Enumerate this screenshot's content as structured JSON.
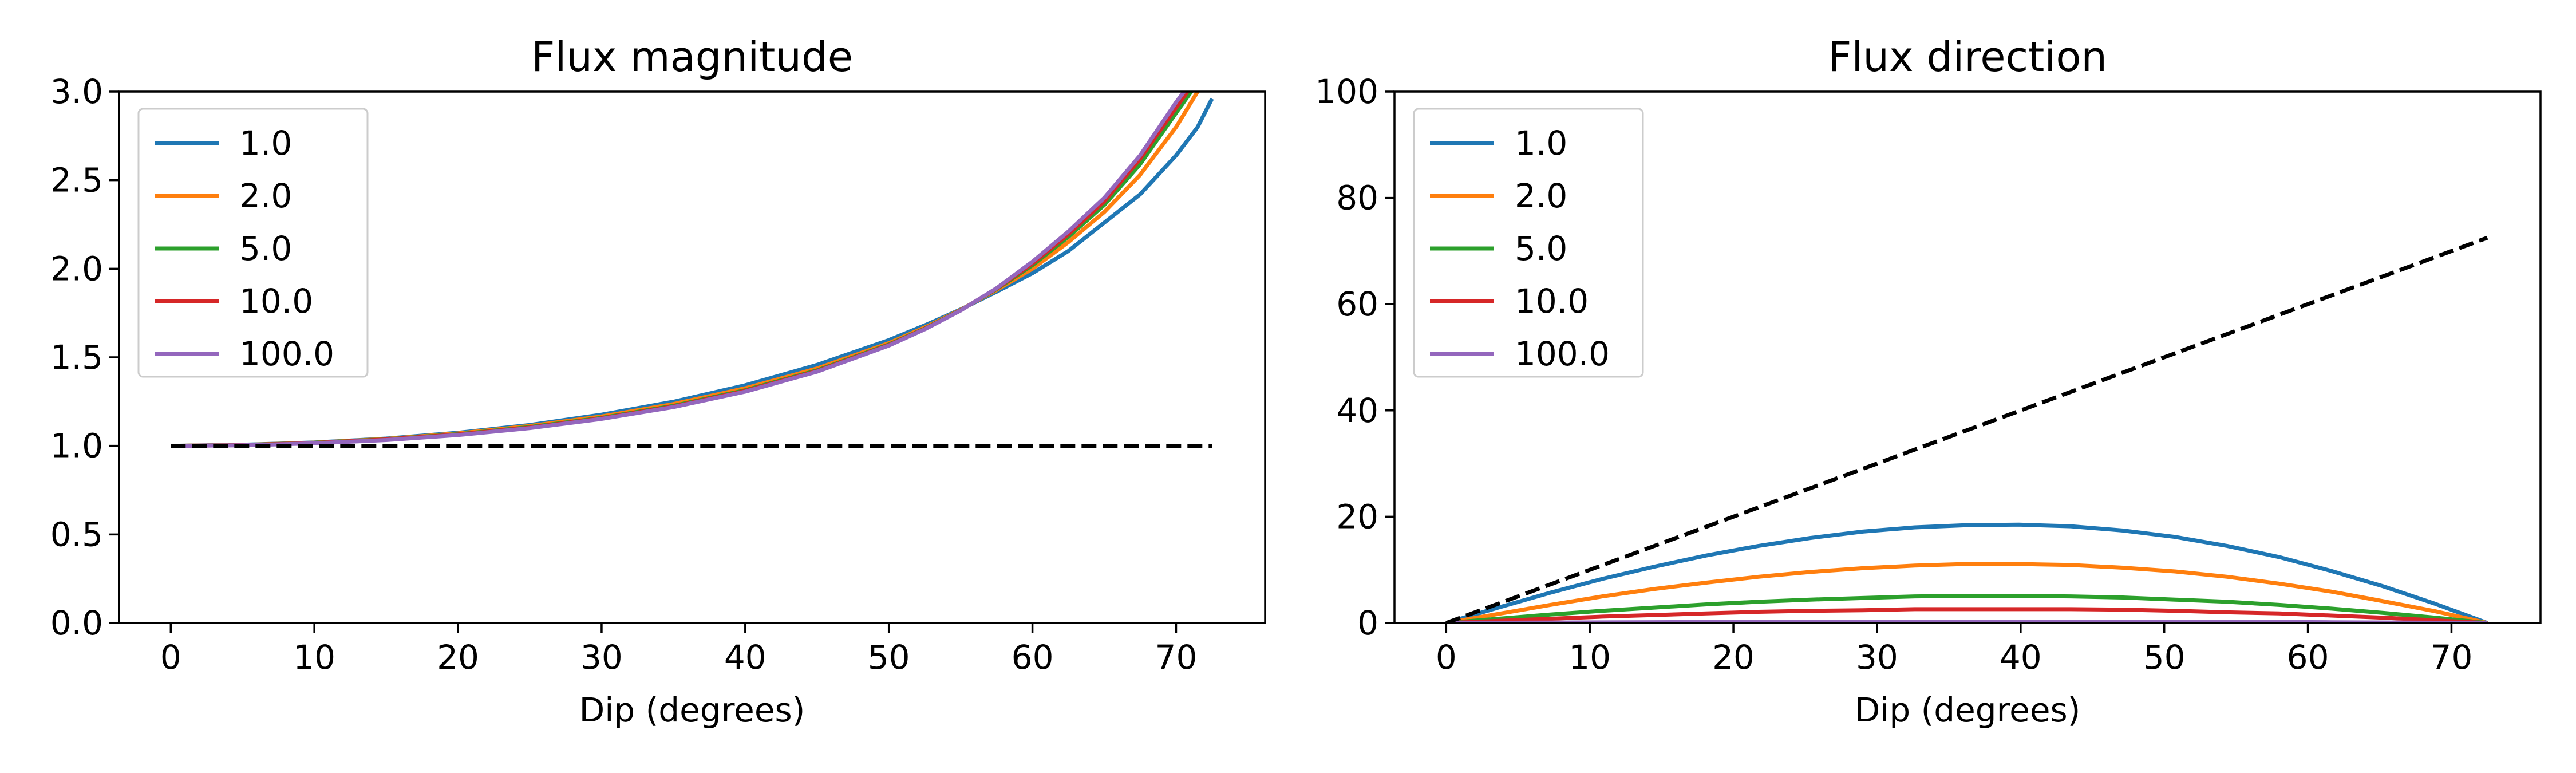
{
  "chart_data": [
    {
      "type": "line",
      "title": "Flux magnitude",
      "xlabel": "Dip (degrees)",
      "ylabel": "",
      "xlim": [
        -3.6,
        76.2
      ],
      "ylim": [
        0,
        3
      ],
      "xticks": [
        "0",
        "10",
        "20",
        "30",
        "40",
        "50",
        "60",
        "70"
      ],
      "yticks": [
        "0.0",
        "0.5",
        "1.0",
        "1.5",
        "2.0",
        "2.5",
        "3.0"
      ],
      "legend_placement": "upper-left",
      "grid": false,
      "x": [
        0,
        5,
        10,
        15,
        20,
        25,
        30,
        35,
        40,
        45,
        50,
        52.5,
        55,
        57.5,
        60,
        62.5,
        65,
        67.5,
        70,
        71.5,
        72.5
      ],
      "series": [
        {
          "name": "1.0",
          "color": "#1f77b4",
          "values": [
            1.0,
            1.006,
            1.019,
            1.041,
            1.074,
            1.118,
            1.176,
            1.249,
            1.342,
            1.457,
            1.597,
            1.68,
            1.77,
            1.87,
            1.975,
            2.1,
            2.26,
            2.42,
            2.64,
            2.8,
            2.96
          ]
        },
        {
          "name": "2.0",
          "color": "#ff7f0e",
          "values": [
            1.0,
            1.005,
            1.018,
            1.039,
            1.07,
            1.112,
            1.166,
            1.236,
            1.325,
            1.437,
            1.58,
            1.668,
            1.768,
            1.88,
            2.0,
            2.15,
            2.32,
            2.53,
            2.8,
            3.0,
            3.1
          ]
        },
        {
          "name": "5.0",
          "color": "#2ca02c",
          "values": [
            1.0,
            1.004,
            1.017,
            1.037,
            1.066,
            1.106,
            1.158,
            1.226,
            1.314,
            1.426,
            1.572,
            1.662,
            1.766,
            1.885,
            2.02,
            2.18,
            2.36,
            2.59,
            2.88,
            3.05,
            3.15
          ]
        },
        {
          "name": "10.0",
          "color": "#d62728",
          "values": [
            1.0,
            1.004,
            1.016,
            1.036,
            1.064,
            1.103,
            1.155,
            1.222,
            1.31,
            1.422,
            1.569,
            1.66,
            1.765,
            1.888,
            2.03,
            2.195,
            2.38,
            2.62,
            2.91,
            3.08,
            3.18
          ]
        },
        {
          "name": "100.0",
          "color": "#9467bd",
          "values": [
            1.0,
            1.003,
            1.014,
            1.033,
            1.061,
            1.1,
            1.152,
            1.219,
            1.306,
            1.419,
            1.566,
            1.658,
            1.764,
            1.89,
            2.04,
            2.21,
            2.4,
            2.64,
            2.94,
            3.1,
            3.2
          ]
        }
      ],
      "reference_line": {
        "style": "dashed",
        "color": "#000000",
        "x": [
          0,
          72.5
        ],
        "values": [
          1.0,
          1.0
        ]
      }
    },
    {
      "type": "line",
      "title": "Flux direction",
      "xlabel": "Dip (degrees)",
      "ylabel": "",
      "xlim": [
        -3.6,
        76.2
      ],
      "ylim": [
        0,
        100
      ],
      "xticks": [
        "0",
        "10",
        "20",
        "30",
        "40",
        "50",
        "60",
        "70"
      ],
      "yticks": [
        "0",
        "20",
        "40",
        "60",
        "80",
        "100"
      ],
      "legend_placement": "upper-left",
      "grid": false,
      "x": [
        0,
        3.625,
        7.25,
        10.875,
        14.5,
        18.125,
        21.75,
        25.375,
        29,
        32.625,
        36.25,
        39.875,
        43.5,
        47.125,
        50.75,
        54.375,
        58,
        61.625,
        65.25,
        68.875,
        72.5
      ],
      "series": [
        {
          "name": "1.0",
          "color": "#1f77b4",
          "values": [
            0,
            2.9,
            5.7,
            8.3,
            10.6,
            12.7,
            14.5,
            16.0,
            17.2,
            18.0,
            18.4,
            18.5,
            18.2,
            17.4,
            16.2,
            14.5,
            12.4,
            9.8,
            6.9,
            3.6,
            0
          ]
        },
        {
          "name": "2.0",
          "color": "#ff7f0e",
          "values": [
            0,
            1.7,
            3.4,
            5.0,
            6.4,
            7.6,
            8.7,
            9.6,
            10.3,
            10.8,
            11.1,
            11.1,
            10.9,
            10.4,
            9.7,
            8.7,
            7.4,
            5.9,
            4.1,
            2.2,
            0
          ]
        },
        {
          "name": "5.0",
          "color": "#2ca02c",
          "values": [
            0,
            0.8,
            1.6,
            2.3,
            2.9,
            3.5,
            4.0,
            4.4,
            4.7,
            5.0,
            5.1,
            5.1,
            5.0,
            4.8,
            4.4,
            4.0,
            3.4,
            2.7,
            1.9,
            1.0,
            0
          ]
        },
        {
          "name": "10.0",
          "color": "#d62728",
          "values": [
            0,
            0.4,
            0.8,
            1.2,
            1.5,
            1.8,
            2.1,
            2.3,
            2.4,
            2.6,
            2.6,
            2.6,
            2.6,
            2.5,
            2.3,
            2.0,
            1.8,
            1.4,
            1.0,
            0.5,
            0
          ]
        },
        {
          "name": "100.0",
          "color": "#9467bd",
          "values": [
            0,
            0.04,
            0.08,
            0.12,
            0.15,
            0.18,
            0.21,
            0.23,
            0.24,
            0.26,
            0.26,
            0.26,
            0.26,
            0.25,
            0.23,
            0.2,
            0.18,
            0.14,
            0.1,
            0.05,
            0
          ]
        }
      ],
      "reference_line": {
        "style": "dashed",
        "color": "#000000",
        "x": [
          0,
          72.5
        ],
        "values": [
          0,
          72.5
        ]
      }
    }
  ]
}
